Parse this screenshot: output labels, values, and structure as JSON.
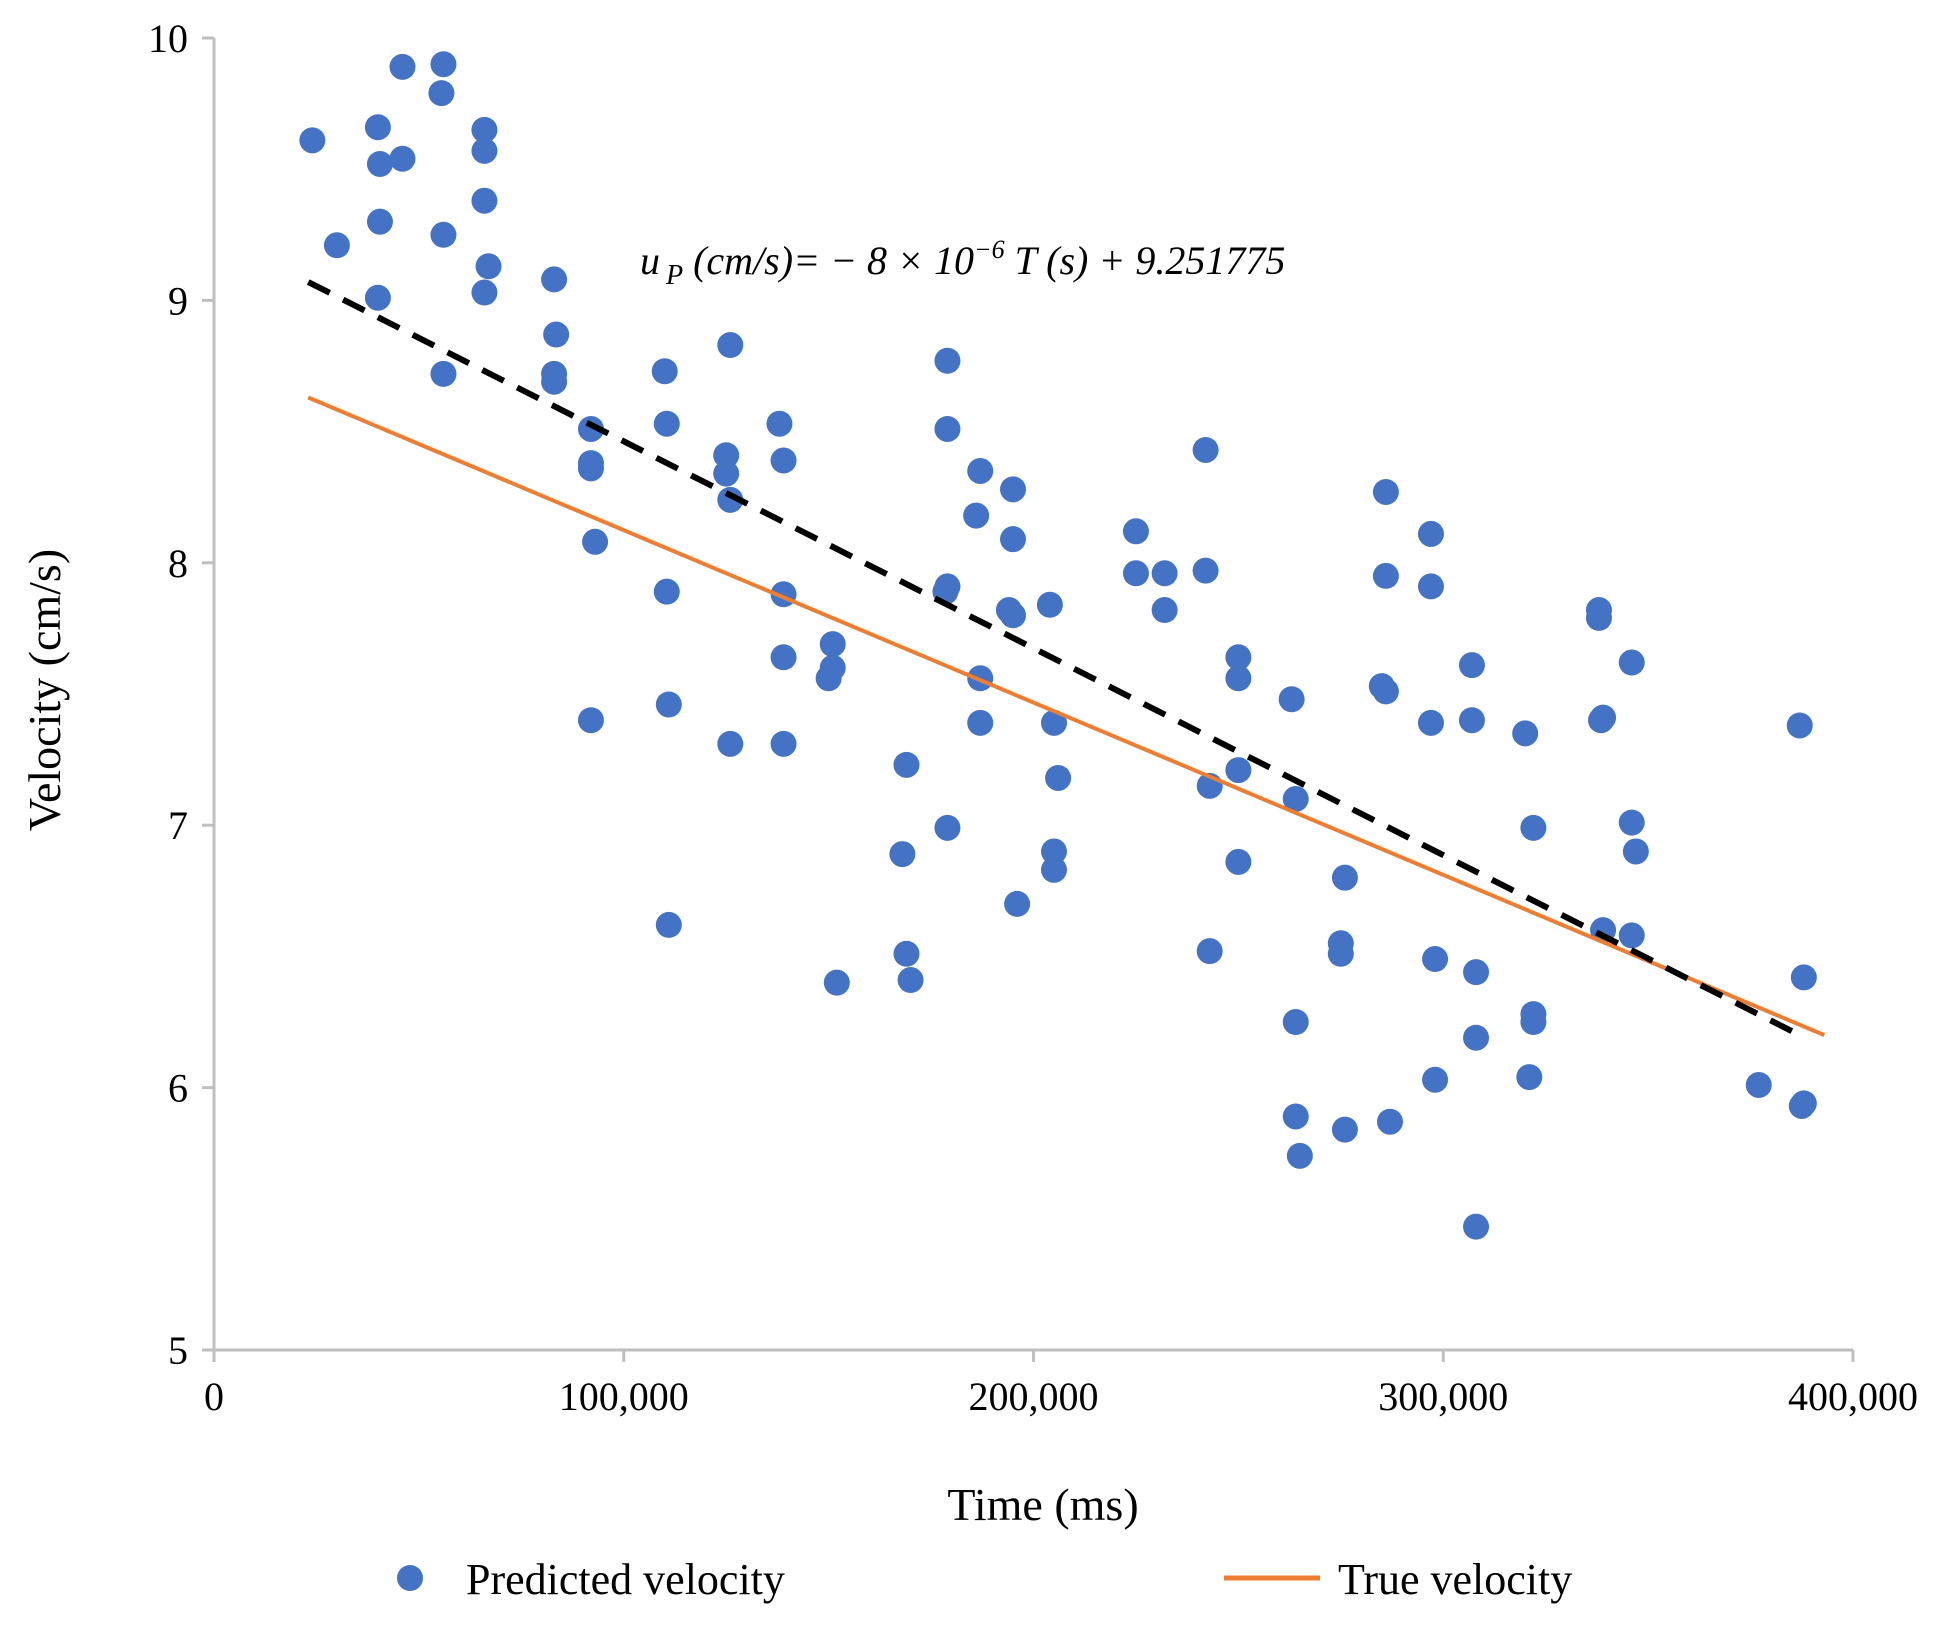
{
  "chart_data": {
    "type": "scatter",
    "title": "",
    "xlabel": "Time (ms)",
    "ylabel": "Velocity (cm/s)",
    "xlim": [
      0,
      400000
    ],
    "ylim": [
      5,
      10
    ],
    "grid": false,
    "legend_position": "bottom",
    "x_ticks": [
      0,
      100000,
      200000,
      300000,
      400000
    ],
    "x_tick_labels": [
      "0",
      "100,000",
      "200,000",
      "300,000",
      "400,000"
    ],
    "y_ticks": [
      5,
      6,
      7,
      8,
      9,
      10
    ],
    "y_tick_labels": [
      "5",
      "6",
      "7",
      "8",
      "9",
      "10"
    ],
    "equation": {
      "u": "u",
      "sub": "P",
      "lhs": " (cm/s)= − 8 × 10",
      "exp": "−6",
      "rhs": "  T (s) + 9.251775"
    },
    "colors": {
      "predicted": "#4472C4",
      "true": "#ED7D31",
      "trendline": "#000000",
      "axis": "#BFBFBF"
    },
    "legend": [
      {
        "name": "Predicted velocity",
        "marker": "circle"
      },
      {
        "name": "True velocity",
        "marker": "line"
      }
    ],
    "series": [
      {
        "name": "Predicted velocity",
        "type": "scatter",
        "points": [
          [
            24000,
            9.61
          ],
          [
            30000,
            9.21
          ],
          [
            40000,
            9.66
          ],
          [
            40500,
            9.52
          ],
          [
            40500,
            9.3
          ],
          [
            40000,
            9.01
          ],
          [
            46000,
            9.89
          ],
          [
            46000,
            9.54
          ],
          [
            56000,
            9.9
          ],
          [
            55500,
            9.79
          ],
          [
            56000,
            9.25
          ],
          [
            56000,
            8.72
          ],
          [
            66000,
            9.65
          ],
          [
            66000,
            9.57
          ],
          [
            66000,
            9.38
          ],
          [
            67000,
            9.13
          ],
          [
            66000,
            9.03
          ],
          [
            83000,
            9.08
          ],
          [
            83500,
            8.87
          ],
          [
            83000,
            8.72
          ],
          [
            83000,
            8.69
          ],
          [
            92000,
            8.51
          ],
          [
            92000,
            8.38
          ],
          [
            92000,
            8.36
          ],
          [
            93000,
            8.08
          ],
          [
            92000,
            7.4
          ],
          [
            110000,
            8.73
          ],
          [
            110500,
            8.53
          ],
          [
            110500,
            7.89
          ],
          [
            111000,
            7.46
          ],
          [
            111000,
            6.62
          ],
          [
            126000,
            8.83
          ],
          [
            125000,
            8.41
          ],
          [
            125000,
            8.34
          ],
          [
            126000,
            8.24
          ],
          [
            126000,
            7.31
          ],
          [
            138000,
            8.53
          ],
          [
            139000,
            8.39
          ],
          [
            139000,
            7.88
          ],
          [
            139000,
            7.64
          ],
          [
            139000,
            7.31
          ],
          [
            151000,
            7.69
          ],
          [
            151000,
            7.6
          ],
          [
            150000,
            7.56
          ],
          [
            152000,
            6.4
          ],
          [
            169000,
            7.23
          ],
          [
            168000,
            6.89
          ],
          [
            169000,
            6.51
          ],
          [
            170000,
            6.41
          ],
          [
            179000,
            8.77
          ],
          [
            179000,
            8.51
          ],
          [
            179000,
            7.91
          ],
          [
            178500,
            7.89
          ],
          [
            179000,
            6.99
          ],
          [
            187000,
            8.35
          ],
          [
            186000,
            8.18
          ],
          [
            187000,
            7.56
          ],
          [
            187000,
            7.39
          ],
          [
            195000,
            8.28
          ],
          [
            195000,
            8.09
          ],
          [
            194000,
            7.82
          ],
          [
            195000,
            7.8
          ],
          [
            196000,
            6.7
          ],
          [
            204000,
            7.84
          ],
          [
            205000,
            7.39
          ],
          [
            206000,
            7.18
          ],
          [
            205000,
            6.9
          ],
          [
            205000,
            6.83
          ],
          [
            225000,
            8.12
          ],
          [
            225000,
            7.96
          ],
          [
            232000,
            7.96
          ],
          [
            232000,
            7.82
          ],
          [
            242000,
            8.43
          ],
          [
            242000,
            7.97
          ],
          [
            243000,
            7.15
          ],
          [
            243000,
            6.52
          ],
          [
            250000,
            7.64
          ],
          [
            250000,
            7.56
          ],
          [
            250000,
            7.21
          ],
          [
            250000,
            6.86
          ],
          [
            263000,
            7.48
          ],
          [
            264000,
            7.1
          ],
          [
            264000,
            6.25
          ],
          [
            264000,
            5.89
          ],
          [
            265000,
            5.74
          ],
          [
            276000,
            6.8
          ],
          [
            275000,
            6.55
          ],
          [
            275000,
            6.51
          ],
          [
            276000,
            5.84
          ],
          [
            286000,
            8.27
          ],
          [
            286000,
            7.95
          ],
          [
            285000,
            7.53
          ],
          [
            286000,
            7.51
          ],
          [
            287000,
            5.87
          ],
          [
            297000,
            8.11
          ],
          [
            297000,
            7.91
          ],
          [
            297000,
            7.39
          ],
          [
            298000,
            6.49
          ],
          [
            298000,
            6.03
          ],
          [
            307000,
            7.61
          ],
          [
            307000,
            7.4
          ],
          [
            308000,
            6.44
          ],
          [
            308000,
            6.19
          ],
          [
            308000,
            5.47
          ],
          [
            320000,
            7.35
          ],
          [
            322000,
            6.99
          ],
          [
            322000,
            6.28
          ],
          [
            322000,
            6.25
          ],
          [
            321000,
            6.04
          ],
          [
            338000,
            7.82
          ],
          [
            338000,
            7.79
          ],
          [
            338500,
            7.4
          ],
          [
            339000,
            7.41
          ],
          [
            339000,
            6.6
          ],
          [
            346000,
            7.62
          ],
          [
            346000,
            7.01
          ],
          [
            347000,
            6.9
          ],
          [
            346000,
            6.58
          ],
          [
            377000,
            6.01
          ],
          [
            387000,
            7.38
          ],
          [
            388000,
            6.42
          ],
          [
            388000,
            5.94
          ],
          [
            387500,
            5.93
          ]
        ]
      },
      {
        "name": "True velocity",
        "type": "line",
        "x": [
          23000,
          393000
        ],
        "y": [
          8.63,
          6.2
        ]
      },
      {
        "name": "Linear trendline (Predicted velocity)",
        "type": "line",
        "style": "dashed",
        "x": [
          23000,
          387000
        ],
        "y": [
          9.07,
          6.2
        ]
      }
    ]
  }
}
